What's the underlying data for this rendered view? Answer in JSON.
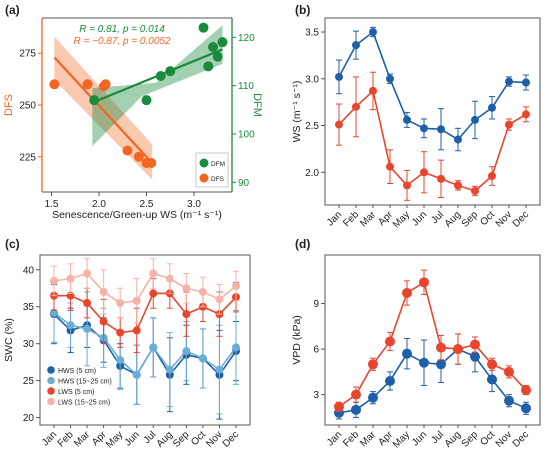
{
  "colors": {
    "orange": "#f26522",
    "green": "#1a8a3c",
    "blue": "#1f5fa8",
    "red": "#e8452e",
    "lightblue": "#6aaed6",
    "pink": "#f4b3a8",
    "axis": "#555555"
  },
  "chart_data": [
    {
      "panel": "(a)",
      "type": "scatter",
      "xlabel": "Senescence/Green-up WS (m⁻¹ s⁻¹)",
      "ylabel_left": "DFS",
      "ylabel_right": "DFM",
      "xlim": [
        1.4,
        3.4
      ],
      "ylim_left": [
        208,
        292
      ],
      "ylim_right": [
        88,
        124
      ],
      "xticks": [
        1.5,
        2.0,
        2.5,
        3.0
      ],
      "yticks_left": [
        225,
        250,
        275
      ],
      "yticks_right": [
        90,
        100,
        110,
        120
      ],
      "annotation_green": "R = 0.81, p = 0.014",
      "annotation_orange": "R = −0.87, p = 0.0052",
      "legend": [
        "DFM",
        "DFS"
      ],
      "series": [
        {
          "name": "DFS",
          "axis": "left",
          "points": [
            [
              1.53,
              260
            ],
            [
              1.88,
              260
            ],
            [
              2.05,
              259
            ],
            [
              2.07,
              260
            ],
            [
              2.3,
              228
            ],
            [
              2.42,
              225
            ],
            [
              2.5,
              222
            ],
            [
              2.55,
              222
            ]
          ],
          "fit": [
            [
              1.53,
              273
            ],
            [
              2.56,
              222
            ]
          ]
        },
        {
          "name": "DFM",
          "axis": "right",
          "points": [
            [
              1.95,
              107
            ],
            [
              2.5,
              107
            ],
            [
              2.65,
              112
            ],
            [
              2.75,
              113
            ],
            [
              3.1,
              122
            ],
            [
              3.15,
              114
            ],
            [
              3.2,
              118
            ],
            [
              3.25,
              116
            ],
            [
              3.3,
              119
            ]
          ],
          "fit": [
            [
              1.93,
              106.5
            ],
            [
              3.3,
              117.5
            ]
          ]
        }
      ]
    },
    {
      "panel": "(b)",
      "type": "line",
      "ylabel": "WS (m⁻¹ s⁻¹)",
      "categories": [
        "Jan",
        "Feb",
        "Mar",
        "Apr",
        "May",
        "Jun",
        "Jul",
        "Aug",
        "Sep",
        "Oct",
        "Nov",
        "Dec"
      ],
      "ylim": [
        1.65,
        3.65
      ],
      "yticks": [
        2.0,
        2.5,
        3.0,
        3.5
      ],
      "series": [
        {
          "color": "blue",
          "values": [
            3.02,
            3.36,
            3.5,
            3.0,
            2.56,
            2.47,
            2.46,
            2.35,
            2.56,
            2.69,
            2.97,
            2.96
          ],
          "errors": [
            0.18,
            0.15,
            0.05,
            0.05,
            0.08,
            0.1,
            0.22,
            0.12,
            0.2,
            0.12,
            0.05,
            0.08
          ]
        },
        {
          "color": "red",
          "values": [
            2.51,
            2.7,
            2.87,
            2.06,
            1.86,
            2.0,
            1.93,
            1.86,
            1.8,
            1.96,
            2.51,
            2.62
          ],
          "errors": [
            0.22,
            0.32,
            0.2,
            0.18,
            0.16,
            0.22,
            0.2,
            0.05,
            0.05,
            0.1,
            0.06,
            0.08
          ]
        }
      ]
    },
    {
      "panel": "(c)",
      "type": "line",
      "ylabel": "SWC (%)",
      "categories": [
        "Jan",
        "Feb",
        "Mar",
        "Apr",
        "May",
        "Jun",
        "Jul",
        "Aug",
        "Sep",
        "Oct",
        "Nov",
        "Dec"
      ],
      "ylim": [
        19,
        42
      ],
      "yticks": [
        20,
        25,
        30,
        35,
        40
      ],
      "legend_placement": "bottom-left",
      "series": [
        {
          "name": "HWS (5 cm)",
          "color": "blue",
          "values": [
            34.0,
            31.8,
            32.5,
            30.5,
            27.0,
            25.8,
            29.5,
            25.8,
            28.5,
            28.0,
            25.8,
            29.0
          ],
          "errors": [
            4,
            3,
            3,
            3,
            3,
            4,
            4,
            5,
            4,
            4,
            6,
            4
          ]
        },
        {
          "name": "HWS (15~25 cm)",
          "color": "lightblue",
          "values": [
            34.2,
            32.5,
            32.0,
            30.8,
            27.8,
            25.8,
            29.5,
            26.5,
            29.0,
            28.0,
            26.5,
            29.5
          ],
          "errors": [
            4,
            3,
            5,
            4,
            4,
            4,
            4,
            5,
            4,
            4,
            6,
            5
          ]
        },
        {
          "name": "LWS (5 cm)",
          "color": "red",
          "values": [
            36.5,
            36.5,
            35.5,
            33.0,
            31.5,
            31.8,
            36.8,
            36.8,
            34.0,
            35.0,
            34.0,
            36.3
          ],
          "errors": [
            2,
            2,
            2,
            3,
            2,
            3,
            2,
            2,
            3,
            2,
            3,
            2
          ]
        },
        {
          "name": "LWS (15~25 cm)",
          "color": "pink",
          "values": [
            38.5,
            38.8,
            39.5,
            37.0,
            35.5,
            35.8,
            39.5,
            38.8,
            37.5,
            37.0,
            36.0,
            37.8
          ],
          "errors": [
            2,
            2,
            2,
            3,
            2,
            3,
            2,
            2,
            2,
            2,
            2,
            2
          ]
        }
      ]
    },
    {
      "panel": "(d)",
      "type": "line",
      "ylabel": "VPD (kPa)",
      "categories": [
        "Jan",
        "Feb",
        "Mar",
        "Apr",
        "May",
        "Jun",
        "Jul",
        "Aug",
        "Sep",
        "Oct",
        "Nov",
        "Dec"
      ],
      "ylim": [
        1.0,
        12.2
      ],
      "yticks": [
        3,
        6,
        9
      ],
      "series": [
        {
          "color": "blue",
          "values": [
            1.8,
            2.0,
            2.8,
            3.9,
            5.7,
            5.1,
            5.0,
            6.0,
            5.5,
            4.0,
            2.6,
            2.1
          ],
          "errors": [
            0.4,
            0.5,
            0.4,
            0.6,
            1.0,
            1.5,
            1.2,
            1.0,
            1.0,
            0.8,
            0.4,
            0.4
          ]
        },
        {
          "color": "red",
          "values": [
            2.2,
            3.0,
            5.0,
            6.5,
            9.7,
            10.4,
            6.1,
            6.0,
            6.3,
            5.0,
            4.5,
            3.3
          ],
          "errors": [
            0.3,
            0.5,
            0.4,
            0.6,
            0.8,
            0.8,
            0.8,
            1.0,
            0.5,
            0.4,
            0.4,
            0.3
          ]
        }
      ]
    }
  ]
}
